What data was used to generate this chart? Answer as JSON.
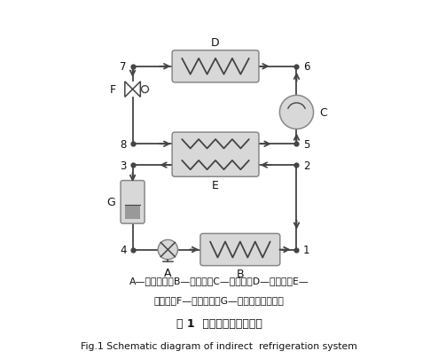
{
  "title_cn": "图 1  间接制冷系统原理图",
  "title_en": "Fig.1 Schematic diagram of indirect  refrigeration system",
  "legend_line1": "A—载冷剂泵；B—蕉发器；C—压缩机；D—冷凝器；E—",
  "legend_line2": "换热器；F—节流装置；G—储液器（蓄冷器）",
  "bg_color": "#ffffff",
  "line_color": "#444444",
  "component_fill": "#d8d8d8",
  "component_edge": "#888888",
  "text_color": "#111111"
}
